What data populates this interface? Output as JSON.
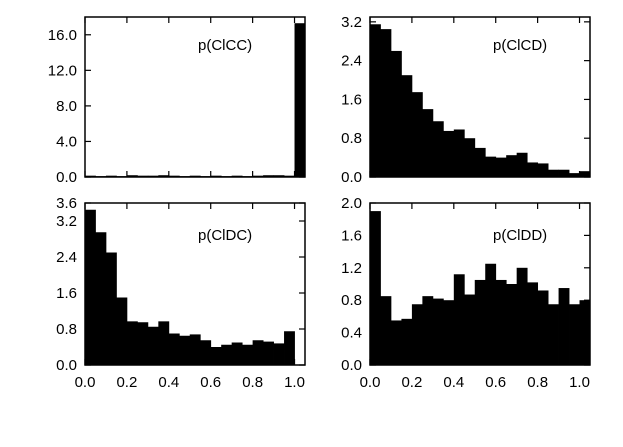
{
  "chart_data": [
    {
      "type": "bar",
      "title": "p(ClCC)",
      "xlim": [
        0,
        1.05
      ],
      "ylim": [
        0,
        18
      ],
      "yticks": [
        0,
        4,
        8,
        12,
        16
      ],
      "ytick_labels": [
        "0.0",
        "4.0",
        "8.0",
        "12.0",
        "16.0"
      ],
      "xticks": [
        0,
        0.2,
        0.4,
        0.6,
        0.8,
        1.0
      ],
      "xtick_labels": [],
      "bin_width": 0.05,
      "values": [
        0.15,
        0.1,
        0.15,
        0.1,
        0.2,
        0.15,
        0.15,
        0.2,
        0.15,
        0.1,
        0.15,
        0.1,
        0.15,
        0.1,
        0.15,
        0.1,
        0.15,
        0.2,
        0.2,
        0.15,
        17.3
      ]
    },
    {
      "type": "bar",
      "title": "p(ClCD)",
      "xlim": [
        0,
        1.05
      ],
      "ylim": [
        0,
        3.3
      ],
      "yticks": [
        0,
        0.8,
        1.6,
        2.4,
        3.2
      ],
      "ytick_labels": [
        "0.0",
        "0.8",
        "1.6",
        "2.4",
        "3.2"
      ],
      "xticks": [
        0,
        0.2,
        0.4,
        0.6,
        0.8,
        1.0
      ],
      "xtick_labels": [],
      "bin_width": 0.05,
      "values": [
        3.15,
        3.05,
        2.6,
        2.1,
        1.75,
        1.4,
        1.15,
        0.95,
        0.98,
        0.8,
        0.6,
        0.42,
        0.4,
        0.45,
        0.5,
        0.3,
        0.28,
        0.15,
        0.15,
        0.08,
        0.12
      ]
    },
    {
      "type": "bar",
      "title": "p(ClDC)",
      "xlim": [
        0,
        1.05
      ],
      "ylim": [
        0,
        3.6
      ],
      "yticks": [
        0,
        0.8,
        1.6,
        2.4,
        3.2,
        3.6
      ],
      "ytick_labels": [
        "0.0",
        "0.8",
        "1.6",
        "2.4",
        "3.2",
        "3.6"
      ],
      "xticks": [
        0,
        0.2,
        0.4,
        0.6,
        0.8,
        1.0
      ],
      "xtick_labels": [
        "0.0",
        "0.2",
        "0.4",
        "0.6",
        "0.8",
        "1.0"
      ],
      "bin_width": 0.05,
      "values": [
        3.45,
        2.95,
        2.5,
        1.5,
        0.97,
        0.95,
        0.85,
        0.97,
        0.7,
        0.65,
        0.68,
        0.55,
        0.4,
        0.45,
        0.5,
        0.45,
        0.55,
        0.52,
        0.48,
        0.75
      ]
    },
    {
      "type": "bar",
      "title": "p(ClDD)",
      "xlim": [
        0,
        1.05
      ],
      "ylim": [
        0,
        2.0
      ],
      "yticks": [
        0,
        0.4,
        0.8,
        1.2,
        1.6,
        2.0
      ],
      "ytick_labels": [
        "0.0",
        "0.4",
        "0.8",
        "1.2",
        "1.6",
        "2.0"
      ],
      "xticks": [
        0,
        0.2,
        0.4,
        0.6,
        0.8,
        1.0
      ],
      "xtick_labels": [
        "0.0",
        "0.2",
        "0.4",
        "0.6",
        "0.8",
        "1.0"
      ],
      "bin_width": 0.05,
      "values": [
        1.9,
        0.85,
        0.55,
        0.57,
        0.75,
        0.85,
        0.82,
        0.8,
        1.12,
        0.87,
        1.05,
        1.25,
        1.05,
        1.0,
        1.2,
        1.02,
        0.92,
        0.75,
        0.95,
        0.75,
        0.8
      ]
    }
  ]
}
